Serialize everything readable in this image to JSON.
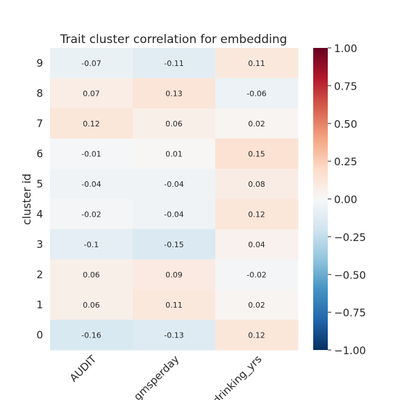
{
  "chart_data": {
    "type": "heatmap",
    "title": "Trait cluster correlation for embedding",
    "ylabel": "cluster id",
    "xlabel": "",
    "columns": [
      "AUDIT",
      "gmsperday",
      "drinking_yrs"
    ],
    "rows": [
      "9",
      "8",
      "7",
      "6",
      "5",
      "4",
      "3",
      "2",
      "1",
      "0"
    ],
    "values": [
      [
        -0.07,
        -0.11,
        0.11
      ],
      [
        0.07,
        0.13,
        -0.06
      ],
      [
        0.12,
        0.06,
        0.02
      ],
      [
        -0.01,
        0.01,
        0.15
      ],
      [
        -0.04,
        -0.04,
        0.08
      ],
      [
        -0.02,
        -0.04,
        0.12
      ],
      [
        -0.1,
        -0.15,
        0.04
      ],
      [
        0.06,
        0.09,
        -0.02
      ],
      [
        0.06,
        0.11,
        0.02
      ],
      [
        -0.16,
        -0.13,
        0.12
      ]
    ],
    "value_labels": [
      [
        "-0.07",
        "-0.11",
        "0.11"
      ],
      [
        "0.07",
        "0.13",
        "-0.06"
      ],
      [
        "0.12",
        "0.06",
        "0.02"
      ],
      [
        "-0.01",
        "0.01",
        "0.15"
      ],
      [
        "-0.04",
        "-0.04",
        "0.08"
      ],
      [
        "-0.02",
        "-0.04",
        "0.12"
      ],
      [
        "-0.1",
        "-0.15",
        "0.04"
      ],
      [
        "0.06",
        "0.09",
        "-0.02"
      ],
      [
        "0.06",
        "0.11",
        "0.02"
      ],
      [
        "-0.16",
        "-0.13",
        "0.12"
      ]
    ],
    "colorbar": {
      "range": [
        -1,
        1
      ],
      "colormap": "RdBu_r",
      "ticks": [
        1.0,
        0.75,
        0.5,
        0.25,
        0.0,
        -0.25,
        -0.5,
        -0.75,
        -1.0
      ],
      "tick_labels": [
        "1.00",
        "0.75",
        "0.50",
        "0.25",
        "0.00",
        "−0.25",
        "−0.50",
        "−0.75",
        "−1.00"
      ]
    }
  }
}
